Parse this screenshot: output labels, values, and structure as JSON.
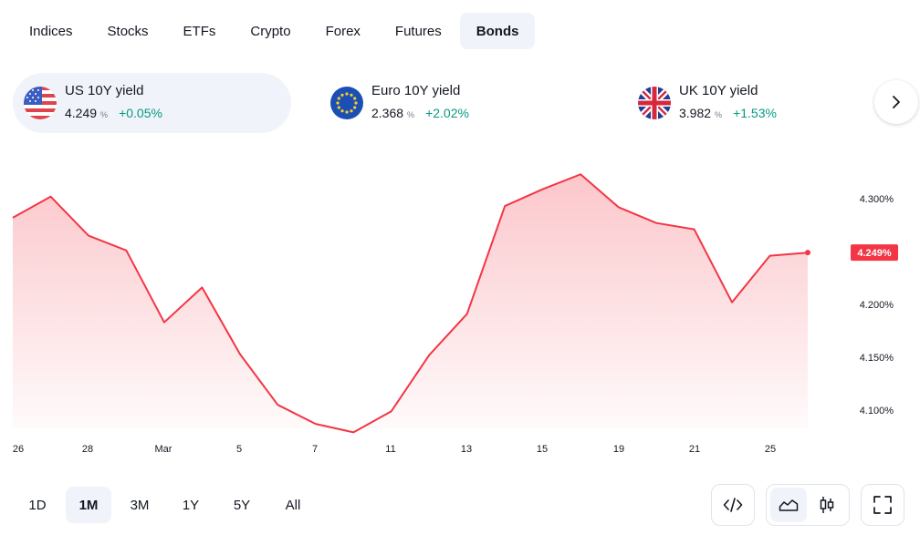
{
  "tabs": [
    {
      "label": "Indices",
      "active": false
    },
    {
      "label": "Stocks",
      "active": false
    },
    {
      "label": "ETFs",
      "active": false
    },
    {
      "label": "Crypto",
      "active": false
    },
    {
      "label": "Forex",
      "active": false
    },
    {
      "label": "Futures",
      "active": false
    },
    {
      "label": "Bonds",
      "active": true
    }
  ],
  "cards": [
    {
      "name": "US 10Y yield",
      "value": "4.249",
      "unit": "%",
      "change": "+0.05%",
      "flag": "us-flag-icon",
      "active": true
    },
    {
      "name": "Euro 10Y yield",
      "value": "2.368",
      "unit": "%",
      "change": "+2.02%",
      "flag": "eu-flag-icon",
      "active": false
    },
    {
      "name": "UK 10Y yield",
      "value": "3.982",
      "unit": "%",
      "change": "+1.53%",
      "flag": "uk-flag-icon",
      "active": false
    }
  ],
  "next_icon": "chevron-right-icon",
  "chart_data": {
    "type": "area",
    "series": [
      {
        "color": "#f23645",
        "points": [
          {
            "x": "Feb 26",
            "y": 4.282
          },
          {
            "x": "Feb 27",
            "y": 4.302
          },
          {
            "x": "Feb 28",
            "y": 4.265
          },
          {
            "x": "Feb 29",
            "y": 4.251
          },
          {
            "x": "Mar 1",
            "y": 4.183
          },
          {
            "x": "Mar 4",
            "y": 4.216
          },
          {
            "x": "Mar 5",
            "y": 4.153
          },
          {
            "x": "Mar 6",
            "y": 4.105
          },
          {
            "x": "Mar 7",
            "y": 4.087
          },
          {
            "x": "Mar 8",
            "y": 4.079
          },
          {
            "x": "Mar 11",
            "y": 4.099
          },
          {
            "x": "Mar 12",
            "y": 4.152
          },
          {
            "x": "Mar 13",
            "y": 4.191
          },
          {
            "x": "Mar 14",
            "y": 4.293
          },
          {
            "x": "Mar 15",
            "y": 4.309
          },
          {
            "x": "Mar 18",
            "y": 4.323
          },
          {
            "x": "Mar 19",
            "y": 4.292
          },
          {
            "x": "Mar 20",
            "y": 4.277
          },
          {
            "x": "Mar 21",
            "y": 4.271
          },
          {
            "x": "Mar 22",
            "y": 4.202
          },
          {
            "x": "Mar 25",
            "y": 4.246
          },
          {
            "x": "Mar 26",
            "y": 4.249
          }
        ]
      }
    ],
    "x_ticks": [
      "26",
      "28",
      "Mar",
      "5",
      "7",
      "11",
      "13",
      "15",
      "19",
      "21",
      "25"
    ],
    "y_ticks": [
      "4.300%",
      "4.200%",
      "4.150%",
      "4.100%"
    ],
    "y_tick_values": [
      4.3,
      4.2,
      4.15,
      4.1
    ],
    "last_price_label": "4.249%",
    "last_price_color": "#f23645",
    "grid": false
  },
  "ranges": [
    {
      "label": "1D",
      "active": false
    },
    {
      "label": "1M",
      "active": true
    },
    {
      "label": "3M",
      "active": false
    },
    {
      "label": "1Y",
      "active": false
    },
    {
      "label": "5Y",
      "active": false
    },
    {
      "label": "All",
      "active": false
    }
  ],
  "tools": {
    "embed_icon": "code-icon",
    "area_icon": "area-chart-icon",
    "candle_icon": "candlestick-icon",
    "fullscreen_icon": "fullscreen-icon"
  }
}
